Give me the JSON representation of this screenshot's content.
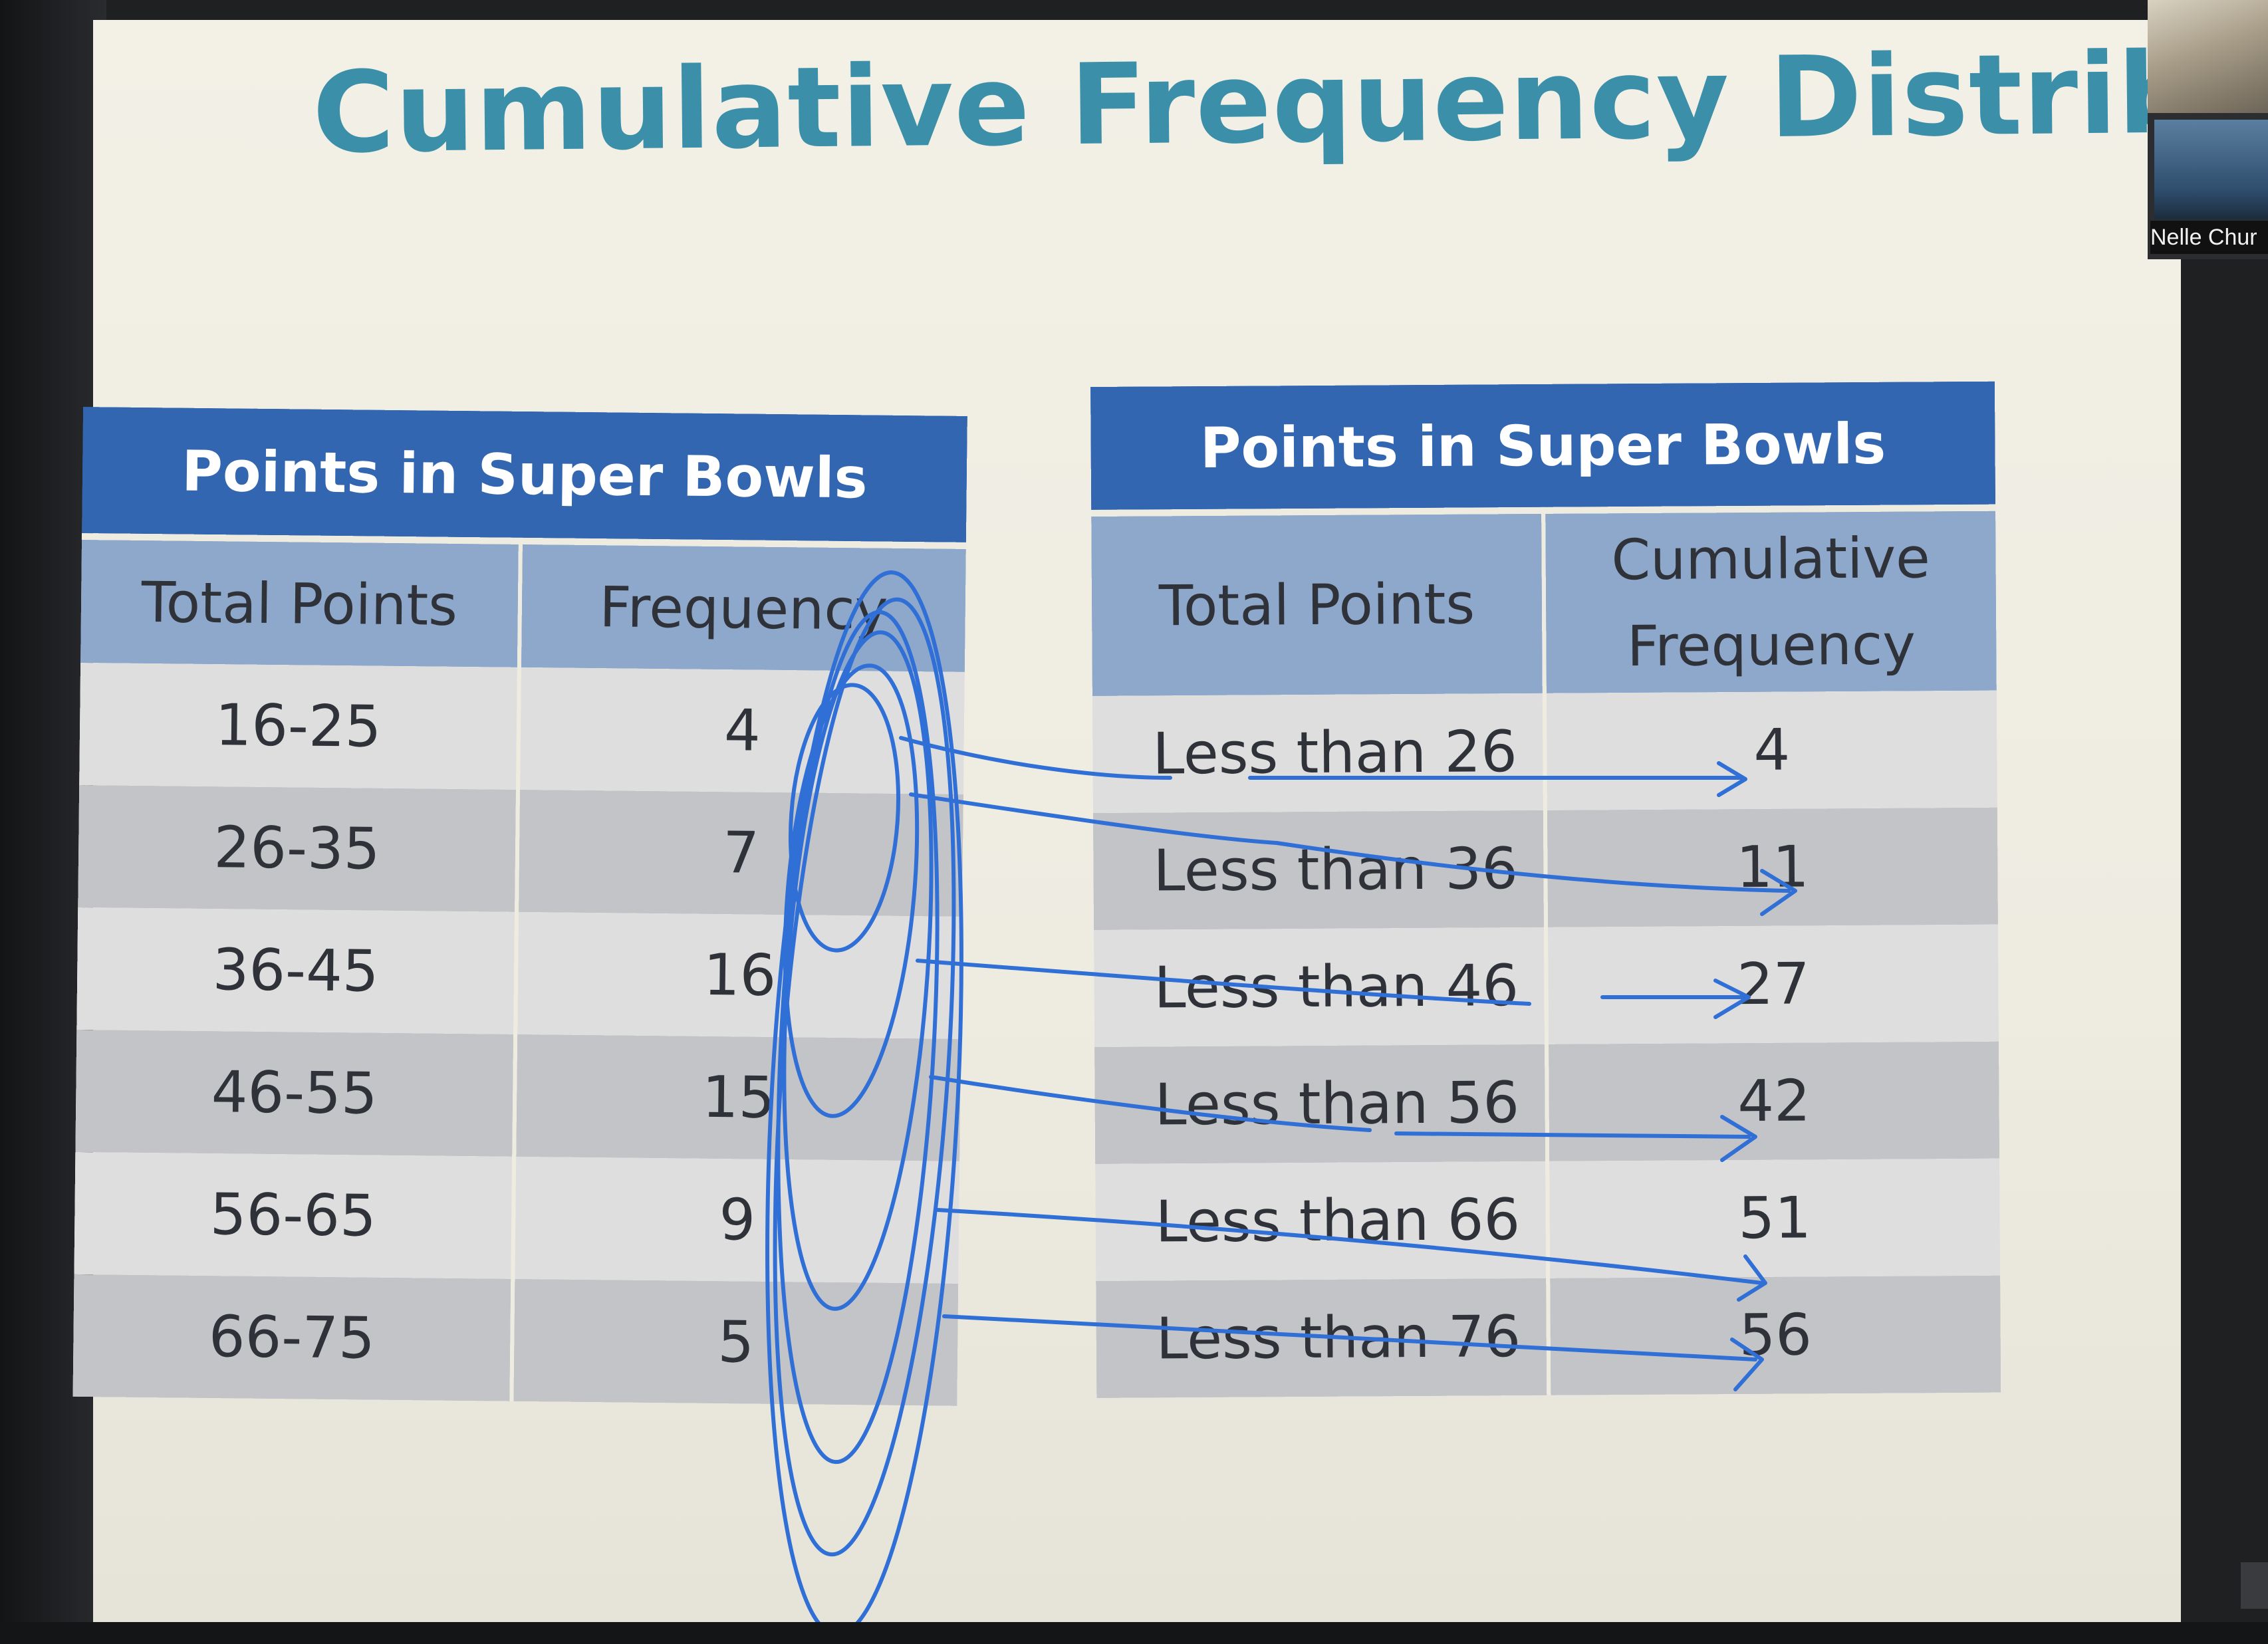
{
  "slide": {
    "title": "Cumulative Frequency Distribution",
    "colors": {
      "title": "#3b8fa8",
      "header": "#3366b0",
      "subheader": "#8ea8cc",
      "annotation_ink": "#2f6fd6"
    }
  },
  "table_left": {
    "title": "Points in Super Bowls",
    "columns": [
      "Total Points",
      "Frequency"
    ],
    "rows": [
      {
        "range": "16-25",
        "frequency": "4"
      },
      {
        "range": "26-35",
        "frequency": "7"
      },
      {
        "range": "36-45",
        "frequency": "16"
      },
      {
        "range": "46-55",
        "frequency": "15"
      },
      {
        "range": "56-65",
        "frequency": "9"
      },
      {
        "range": "66-75",
        "frequency": "5"
      }
    ]
  },
  "table_right": {
    "title": "Points in Super Bowls",
    "columns": [
      "Total Points",
      "Cumulative Frequency"
    ],
    "rows": [
      {
        "label": "Less than 26",
        "cumulative": "4"
      },
      {
        "label": "Less than 36",
        "cumulative": "11"
      },
      {
        "label": "Less than 46",
        "cumulative": "27"
      },
      {
        "label": "Less than 56",
        "cumulative": "42"
      },
      {
        "label": "Less than 66",
        "cumulative": "51"
      },
      {
        "label": "Less than 76",
        "cumulative": "56"
      }
    ]
  },
  "webcam": {
    "name": "Nelle Chur"
  }
}
